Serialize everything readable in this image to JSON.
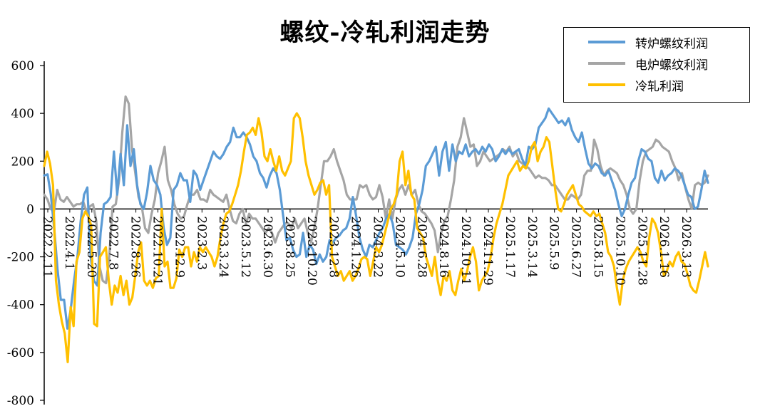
{
  "chart_data": {
    "type": "line",
    "title": "螺纹-冷轧利润走势",
    "xlabel": "",
    "ylabel": "",
    "ylim": [
      -800,
      600
    ],
    "yticks": [
      600,
      400,
      200,
      0,
      -200,
      -400,
      -600,
      -800
    ],
    "x_tick_labels": [
      "2022.2.11",
      "2022.4.1",
      "2022.5.20",
      "2022.7.8",
      "2022.8.26",
      "2022.10.21",
      "2022.12.9",
      "2023.2.3",
      "2023.3.24",
      "2023.5.12",
      "2023.6.30",
      "2023.8.25",
      "2023.10.20",
      "2023.12.8",
      "2024.1.26",
      "2024.3.22",
      "2024.5.10",
      "2024.6.28",
      "2024.8.16",
      "2024.10.11",
      "2024.11.29",
      "2025.1.17",
      "2025.3.14",
      "2025.5.9",
      "2025.6.27",
      "2025.8.15",
      "2025.10.10",
      "2025.11.28",
      "2026.1.16",
      "2026.3.13"
    ],
    "grid": false,
    "legend_position": "top-right",
    "series": [
      {
        "name": "转炉螺纹利润",
        "color": "#5B9BD5",
        "values": [
          140,
          145,
          60,
          -80,
          -250,
          -380,
          -380,
          -500,
          -420,
          -300,
          -200,
          -50,
          60,
          90,
          -200,
          -300,
          -320,
          -100,
          20,
          30,
          50,
          240,
          60,
          230,
          100,
          350,
          180,
          250,
          100,
          20,
          0,
          70,
          180,
          120,
          100,
          60,
          -80,
          -150,
          -120,
          80,
          100,
          150,
          120,
          120,
          30,
          160,
          140,
          80,
          120,
          160,
          200,
          240,
          220,
          210,
          230,
          260,
          280,
          340,
          300,
          300,
          320,
          300,
          270,
          220,
          200,
          150,
          130,
          90,
          140,
          170,
          150,
          80,
          -30,
          -130,
          -120,
          -170,
          -200,
          -190,
          -100,
          -200,
          -150,
          -170,
          -230,
          -190,
          -220,
          -200,
          -130,
          -140,
          -120,
          -110,
          -90,
          -80,
          -40,
          50,
          -30,
          -120,
          -170,
          -200,
          -150,
          -160,
          -130,
          -100,
          -80,
          -40,
          -20,
          -60,
          -150,
          -160,
          -170,
          -190,
          -160,
          -120,
          -20,
          20,
          80,
          180,
          200,
          230,
          260,
          140,
          240,
          280,
          160,
          270,
          200,
          240,
          230,
          270,
          220,
          240,
          250,
          230,
          260,
          240,
          270,
          250,
          200,
          220,
          250,
          230,
          250,
          230,
          240,
          250,
          210,
          180,
          260,
          250,
          270,
          340,
          360,
          380,
          420,
          400,
          380,
          360,
          370,
          350,
          380,
          330,
          300,
          280,
          320,
          250,
          190,
          170,
          190,
          180,
          150,
          140,
          160,
          120,
          80,
          20,
          -30,
          0,
          60,
          110,
          130,
          200,
          250,
          240,
          210,
          200,
          130,
          110,
          160,
          120,
          140,
          150,
          170,
          160,
          140,
          100,
          60,
          50,
          0,
          10,
          80,
          160,
          110
        ]
      },
      {
        "name": "电炉螺纹利润",
        "color": "#A5A5A5",
        "values": [
          60,
          40,
          0,
          -10,
          80,
          40,
          30,
          50,
          30,
          10,
          20,
          20,
          30,
          -10,
          10,
          20,
          -50,
          -240,
          -300,
          -310,
          -200,
          10,
          20,
          120,
          320,
          470,
          440,
          250,
          150,
          50,
          10,
          -80,
          -100,
          -20,
          40,
          150,
          200,
          260,
          120,
          80,
          20,
          -20,
          -40,
          -30,
          20,
          60,
          60,
          80,
          40,
          40,
          30,
          80,
          60,
          50,
          40,
          30,
          60,
          0,
          -50,
          -60,
          -20,
          0,
          -60,
          -20,
          -40,
          -40,
          -60,
          -80,
          -100,
          -80,
          -100,
          -140,
          -100,
          -80,
          -60,
          -60,
          -80,
          -40,
          -80,
          -60,
          -40,
          -100,
          -140,
          -80,
          0,
          100,
          200,
          200,
          220,
          250,
          200,
          160,
          120,
          60,
          40,
          40,
          40,
          100,
          90,
          100,
          60,
          40,
          50,
          100,
          50,
          -40,
          40,
          -40,
          40,
          80,
          100,
          60,
          100,
          60,
          80,
          20,
          -10,
          -20,
          -40,
          -60,
          -90,
          -180,
          -100,
          -50,
          -30,
          40,
          120,
          260,
          300,
          380,
          320,
          260,
          270,
          180,
          200,
          240,
          220,
          200,
          210,
          220,
          230,
          250,
          240,
          260,
          220,
          240,
          200,
          190,
          180,
          170,
          150,
          130,
          140,
          130,
          130,
          120,
          100,
          100,
          80,
          60,
          40,
          40,
          60,
          50,
          40,
          60,
          140,
          160,
          160,
          290,
          250,
          180,
          140,
          160,
          170,
          160,
          150,
          120,
          100,
          60,
          0,
          -20,
          0,
          120,
          200,
          240,
          250,
          260,
          290,
          280,
          260,
          250,
          240,
          200,
          170,
          120,
          150,
          90,
          40,
          0,
          100,
          110,
          100,
          110,
          140
        ]
      },
      {
        "name": "冷轧利润",
        "color": "#FFC000",
        "values": [
          180,
          240,
          190,
          100,
          -300,
          -400,
          -470,
          -520,
          -640,
          -410,
          -490,
          -220,
          -180,
          -40,
          -10,
          -30,
          -70,
          -480,
          -490,
          -200,
          -180,
          -160,
          -300,
          -400,
          -320,
          -350,
          -280,
          -360,
          -300,
          -400,
          -370,
          -280,
          -180,
          -140,
          -300,
          -320,
          -300,
          -330,
          -290,
          -280,
          0,
          -240,
          -220,
          -330,
          -330,
          -290,
          -170,
          -200,
          -160,
          -160,
          -240,
          -180,
          -220,
          -160,
          -180,
          -160,
          -180,
          -200,
          -240,
          -200,
          -120,
          -60,
          -20,
          -10,
          20,
          60,
          100,
          160,
          240,
          310,
          320,
          340,
          310,
          380,
          320,
          220,
          200,
          250,
          200,
          160,
          220,
          160,
          140,
          170,
          200,
          380,
          400,
          380,
          300,
          200,
          140,
          100,
          60,
          80,
          110,
          120,
          60,
          100,
          -200,
          -240,
          -280,
          -260,
          -300,
          -280,
          -260,
          -300,
          -280,
          -250,
          -210,
          -200,
          -210,
          -280,
          -220,
          -160,
          -180,
          -150,
          -100,
          -50,
          0,
          20,
          60,
          200,
          240,
          100,
          160,
          60,
          40,
          -80,
          -100,
          -120,
          -200,
          -240,
          -280,
          -200,
          -300,
          -360,
          -280,
          -300,
          -260,
          -340,
          -360,
          -300,
          -250,
          -300,
          -260,
          -200,
          -160,
          -220,
          -340,
          -300,
          -280,
          -260,
          -200,
          -120,
          -60,
          -20,
          20,
          80,
          140,
          160,
          180,
          200,
          160,
          180,
          170,
          200,
          260,
          280,
          200,
          240,
          260,
          300,
          280,
          180,
          80,
          0,
          -10,
          20,
          60,
          80,
          100,
          60,
          20,
          10,
          -10,
          -20,
          -30,
          -10,
          -30,
          -20,
          -60,
          -100,
          -180,
          -200,
          -240,
          -330,
          -400,
          -300,
          -250,
          -220,
          -200,
          -180,
          -160,
          -180,
          -220,
          -240,
          -120,
          -40,
          -60,
          -100,
          -180,
          -280,
          -260,
          -220,
          -240,
          -200,
          -180,
          -220,
          -230,
          -270,
          -320,
          -340,
          -350,
          -300,
          -240,
          -180,
          -240
        ]
      }
    ]
  }
}
